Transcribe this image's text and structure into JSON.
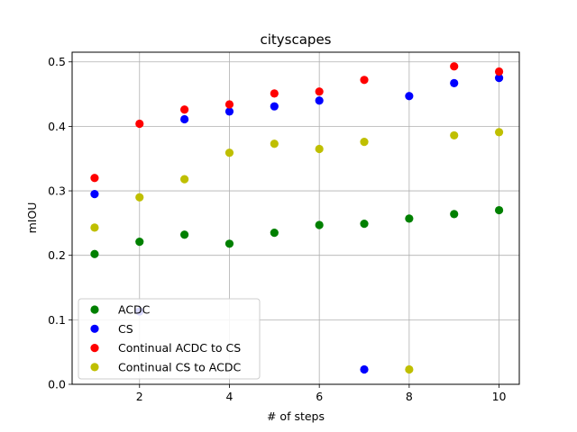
{
  "chart_data": {
    "type": "scatter",
    "title": "cityscapes",
    "xlabel": "# of steps",
    "ylabel": "mIOU",
    "xlim": [
      0.5,
      10.45
    ],
    "ylim": [
      0.0,
      0.515
    ],
    "xticks": [
      2,
      4,
      6,
      8,
      10
    ],
    "xtick_labels": [
      "2",
      "4",
      "6",
      "8",
      "10"
    ],
    "yticks": [
      0.0,
      0.1,
      0.2,
      0.3,
      0.4,
      0.5
    ],
    "ytick_labels": [
      "0.0",
      "0.1",
      "0.2",
      "0.3",
      "0.4",
      "0.5"
    ],
    "grid": true,
    "legend_position": "lower-left",
    "series": [
      {
        "name": "ACDC",
        "color": "#008000",
        "points": [
          [
            1,
            0.202
          ],
          [
            2,
            0.221
          ],
          [
            3,
            0.232
          ],
          [
            4,
            0.218
          ],
          [
            5,
            0.235
          ],
          [
            6,
            0.247
          ],
          [
            7,
            0.249
          ],
          [
            8,
            0.257
          ],
          [
            9,
            0.264
          ],
          [
            10,
            0.27
          ]
        ]
      },
      {
        "name": "CS",
        "color": "#0000ff",
        "points": [
          [
            1,
            0.295
          ],
          [
            2,
            0.113
          ],
          [
            3,
            0.411
          ],
          [
            4,
            0.423
          ],
          [
            5,
            0.431
          ],
          [
            6,
            0.44
          ],
          [
            7,
            0.023
          ],
          [
            8,
            0.447
          ],
          [
            9,
            0.467
          ],
          [
            10,
            0.475
          ]
        ]
      },
      {
        "name": "Continual ACDC to CS",
        "color": "#ff0000",
        "points": [
          [
            1,
            0.32
          ],
          [
            2,
            0.404
          ],
          [
            3,
            0.426
          ],
          [
            4,
            0.434
          ],
          [
            5,
            0.451
          ],
          [
            6,
            0.454
          ],
          [
            7,
            0.472
          ],
          [
            9,
            0.493
          ],
          [
            10,
            0.485
          ]
        ]
      },
      {
        "name": "Continual CS to ACDC",
        "color": "#bfbf00",
        "points": [
          [
            1,
            0.243
          ],
          [
            2,
            0.29
          ],
          [
            3,
            0.318
          ],
          [
            4,
            0.359
          ],
          [
            5,
            0.373
          ],
          [
            6,
            0.365
          ],
          [
            7,
            0.376
          ],
          [
            8,
            0.023
          ],
          [
            9,
            0.386
          ],
          [
            10,
            0.391
          ]
        ]
      }
    ]
  }
}
